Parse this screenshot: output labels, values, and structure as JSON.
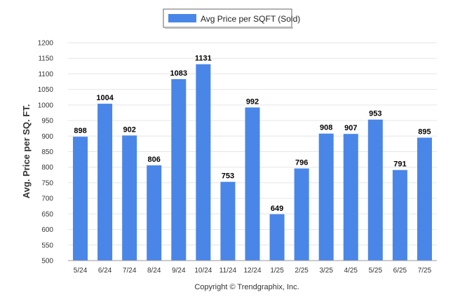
{
  "chart_data": {
    "type": "bar",
    "categories": [
      "5/24",
      "6/24",
      "7/24",
      "8/24",
      "9/24",
      "10/24",
      "11/24",
      "12/24",
      "1/25",
      "2/25",
      "3/25",
      "4/25",
      "5/25",
      "6/25",
      "7/25"
    ],
    "series": [
      {
        "name": "Avg Price per SQFT (Sold)",
        "values": [
          898,
          1004,
          902,
          806,
          1083,
          1131,
          753,
          992,
          649,
          796,
          908,
          907,
          953,
          791,
          895
        ]
      }
    ],
    "ylabel": "Avg. Price per SQ. FT.",
    "ylim": [
      500,
      1200
    ],
    "yticks": [
      500,
      550,
      600,
      650,
      700,
      750,
      800,
      850,
      900,
      950,
      1000,
      1050,
      1100,
      1150,
      1200
    ],
    "grid": true,
    "legend_position": "top-center",
    "bar_color": "#4a86e8",
    "data_labels": true
  },
  "credit": "Copyright © Trendgraphix, Inc."
}
